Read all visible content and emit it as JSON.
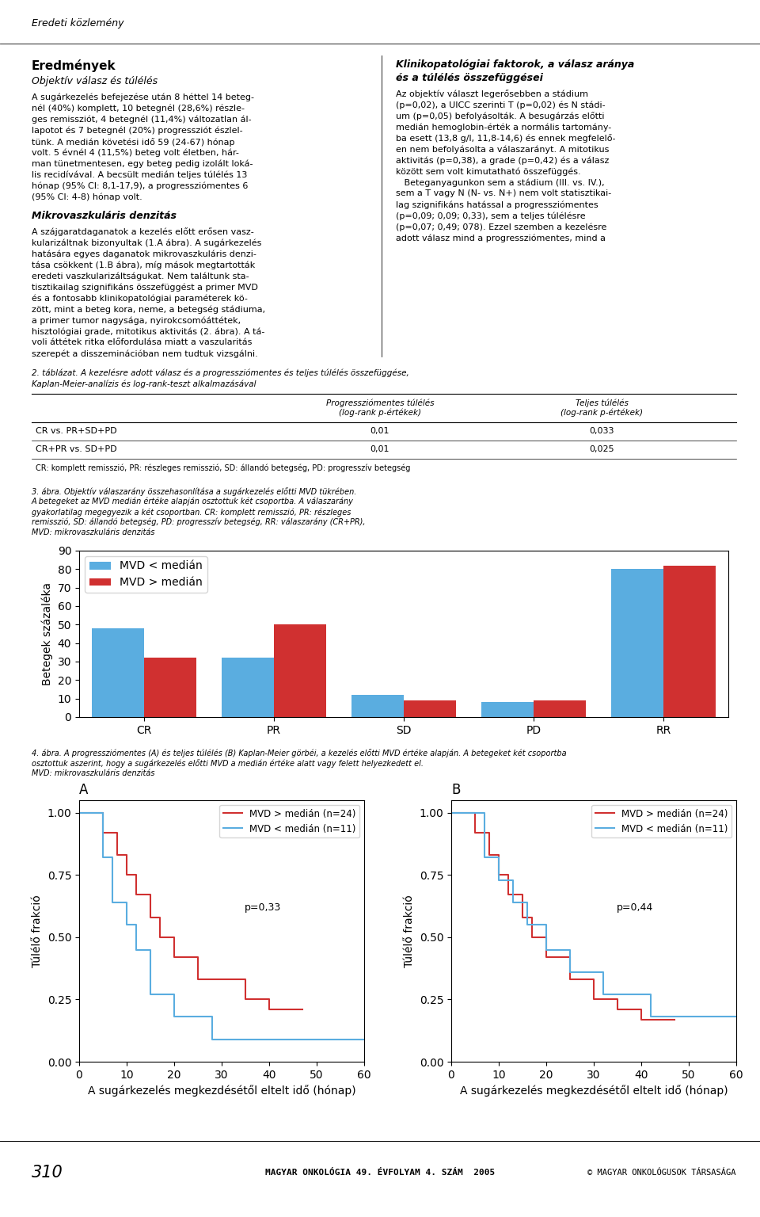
{
  "page": {
    "header": "Eredeti közlemény",
    "results": {
      "title": "Eredmények",
      "subtitle": "Objektív válasz és túlélés",
      "lines": [
        "A sugárkezelés befejezése után 8 héttel 14 beteg-",
        "nél (40%) komplett, 10 betegnél (28,6%) részle-",
        "ges remissziót, 4 betegnél (11,4%) változatlan ál-",
        "lapotot és 7 betegnél (20%) progressziót észlel-",
        "tünk. A medián követési idő 59 (24-67) hónap",
        "volt. 5 évnél 4 (11,5%) beteg volt életben, hár-",
        "man tünetmentesen, egy beteg pedig izolált loká-",
        "lis recidívával. A becsült medián teljes túlélés 13",
        "hónap (95% CI: 8,1-17,9), a progressziómentes 6",
        "(95% CI: 4-8) hónap volt."
      ]
    },
    "sections": [
      {
        "title": [
          "Mikrovaszkuláris denzitás"
        ],
        "lines": [
          "A szájgaratdaganatok a kezelés előtt erősen vasz-",
          "kularizáltnak bizonyultak (1.A ábra). A sugárkezelés",
          "hatására egyes daganatok mikrovaszkuláris denzi-",
          "tása csökkent (1.B ábra), míg mások megtartották",
          "eredeti vaszkularizáltságukat. Nem találtunk sta-",
          "tisztikailag szignifikáns összefüggést a primer MVD",
          "és a fontosabb klinikopatológiai paraméterek kö-",
          "zött, mint a beteg kora, neme, a betegség stádiuma,",
          "a primer tumor nagysága, nyirokcsomóáttétek,",
          "hisztológiai grade, mitotikus aktivitás (2. ábra). A tá-",
          "voli áttétek ritka előfordulása miatt a vaszularitás",
          "szerepét a disszeminációban nem tudtuk vizsgálni."
        ]
      },
      {
        "title": [
          "Klinikopatológiai faktorok, a válasz aránya",
          "és a túlélés összefüggései"
        ],
        "lines": [
          "Az objektív választ legerősebben a stádium",
          "(p=0,02), a UICC szerinti T (p=0,02) és N stádi-",
          "um (p=0,05) befolyásolták. A besugárzás előtti",
          "medián hemoglobin-érték a normális tartomány-",
          "ba esett (13,8 g/l, 11,8-14,6) és ennek megfelelő-",
          "en nem befolyásolta a válaszarányt. A mitotikus",
          "aktivitás (p=0,38), a grade (p=0,42) és a válasz",
          "között sem volt kimutatható összefüggés.",
          "   Beteganyagunkon sem a stádium (III. vs. IV.),",
          "sem a T vagy N (N- vs. N+) nem volt statisztikai-",
          "lag szignifikáns hatással a progressziómentes",
          "(p=0,09; 0,09; 0,33), sem a teljes túlélésre",
          "(p=0,07; 0,49; 078). Ezzel szemben a kezelésre",
          "adott válasz mind a progressziómentes, mind a"
        ]
      }
    ],
    "table": {
      "caption": [
        "2. táblázat. A kezelésre adott válasz és a progressziómentes és teljes túlélés összefüggése,",
        "Kaplan-Meier-analízis és log-rank-teszt alkalmazásával"
      ],
      "column_headers": [
        [
          "Progressziómentes túlélés",
          "(log-rank p-értékek)"
        ],
        [
          "Teljes túlélés",
          "(log-rank p-értékek)"
        ]
      ],
      "rows": [
        {
          "label": "CR vs. PR+SD+PD",
          "cells": [
            "0,01",
            "0,033"
          ]
        },
        {
          "label": "CR+PR vs. SD+PD",
          "cells": [
            "0,01",
            "0,025"
          ]
        }
      ],
      "footnote": "CR: komplett remisszió, PR: részleges remisszió, SD: állandó betegség, PD: progresszív betegség"
    },
    "fig3_caption": [
      "3. ábra. Objektív válaszarány összehasonlítása a sugárkezelés előtti MVD tükrében.",
      "A betegeket az MVD medián értéke alapján osztottuk két csoportba. A válaszarány",
      "gyakorlatilag megegyezik a két csoportban. CR: komplett remisszió, PR: részleges",
      "remisszió, SD: állandó betegség, PD: progresszív betegség, RR: válaszarány (CR+PR),",
      "MVD: mikrovaszkuláris denzitás"
    ],
    "fig4_caption": [
      "4. ábra. A progressziómentes (A) és teljes túlélés (B) Kaplan-Meier görbéi, a kezelés előtti MVD értéke alapján. A betegeket két csoportba",
      "osztottuk aszerint, hogy a sugárkezelés előtti MVD a medián értéke alatt vagy felett helyezkedett el.",
      "MVD: mikrovaszkuláris denzitás"
    ],
    "footer_page": "310",
    "footer_journal": "MAGYAR ONKOLÓGIA 49. ÉVFOLYAM 4. SZÁM  2005",
    "footer_right": "© MAGYAR ONKOLÓGUSOK TÁRSASÁGA"
  },
  "chart_data": [
    {
      "type": "bar",
      "categories": [
        "CR",
        "PR",
        "SD",
        "PD",
        "RR"
      ],
      "series": [
        {
          "name": "MVD < medián",
          "color": "#5aade0",
          "values": [
            48,
            32,
            12,
            8,
            80
          ]
        },
        {
          "name": "MVD > medián",
          "color": "#d03030",
          "values": [
            32,
            50,
            9,
            9,
            82
          ]
        }
      ],
      "ylabel": "Betegek százaléka",
      "ylim": [
        0,
        90
      ],
      "yticks": [
        0,
        10,
        20,
        30,
        40,
        50,
        60,
        70,
        80,
        90
      ],
      "legend": "upper left",
      "grid": false
    },
    {
      "type": "step",
      "title": "A",
      "xlabel": "A sugárkezelés megkezdésétől eltelt idő (hónap)",
      "ylabel": "Túlélő frakció",
      "xlim": [
        0,
        60
      ],
      "ylim": [
        0.0,
        1.05
      ],
      "xticks": [
        0,
        10,
        20,
        30,
        40,
        50,
        60
      ],
      "yticks": [
        {
          "value": 0.0,
          "label": "0.00"
        },
        0.25,
        {
          "value": 0.5,
          "label": "0.50"
        },
        0.75,
        {
          "value": 1.0,
          "label": "1.00"
        }
      ],
      "series": [
        {
          "name": "MVD > medián (n=24)",
          "color": "#d03030",
          "x": [
            0,
            5,
            8,
            10,
            12,
            15,
            17,
            20,
            25,
            30,
            35,
            40,
            47
          ],
          "values": [
            1.0,
            0.92,
            0.83,
            0.75,
            0.67,
            0.58,
            0.5,
            0.42,
            0.33,
            0.33,
            0.25,
            0.21,
            0.21
          ]
        },
        {
          "name": "MVD < medián (n=11)",
          "color": "#5aade0",
          "x": [
            0,
            5,
            7,
            10,
            12,
            15,
            20,
            28,
            60
          ],
          "values": [
            1.0,
            0.82,
            0.64,
            0.55,
            0.45,
            0.27,
            0.18,
            0.09,
            0.09
          ]
        }
      ],
      "annotations": [
        "p=0,33"
      ],
      "legend": "upper right",
      "grid": false
    },
    {
      "type": "step",
      "title": "B",
      "xlabel": "A sugárkezelés megkezdésétől eltelt idő (hónap)",
      "ylabel": "Túlélő frakció",
      "xlim": [
        0,
        60
      ],
      "ylim": [
        0.0,
        1.05
      ],
      "xticks": [
        0,
        10,
        20,
        30,
        40,
        50,
        60
      ],
      "yticks": [
        {
          "value": 0.0,
          "label": "0.00"
        },
        0.25,
        {
          "value": 0.5,
          "label": "0.50"
        },
        0.75,
        {
          "value": 1.0,
          "label": "1.00"
        }
      ],
      "series": [
        {
          "name": "MVD > medián (n=24)",
          "color": "#d03030",
          "x": [
            0,
            5,
            8,
            10,
            12,
            15,
            17,
            20,
            25,
            30,
            35,
            40,
            47
          ],
          "values": [
            1.0,
            0.92,
            0.83,
            0.75,
            0.67,
            0.58,
            0.5,
            0.42,
            0.33,
            0.25,
            0.21,
            0.17,
            0.17
          ]
        },
        {
          "name": "MVD < medián (n=11)",
          "color": "#5aade0",
          "x": [
            0,
            7,
            10,
            13,
            16,
            20,
            25,
            32,
            42,
            60
          ],
          "values": [
            1.0,
            0.82,
            0.73,
            0.64,
            0.55,
            0.45,
            0.36,
            0.27,
            0.18,
            0.18
          ]
        }
      ],
      "annotations": [
        "p=0,44"
      ],
      "legend": "upper right",
      "grid": false
    }
  ]
}
